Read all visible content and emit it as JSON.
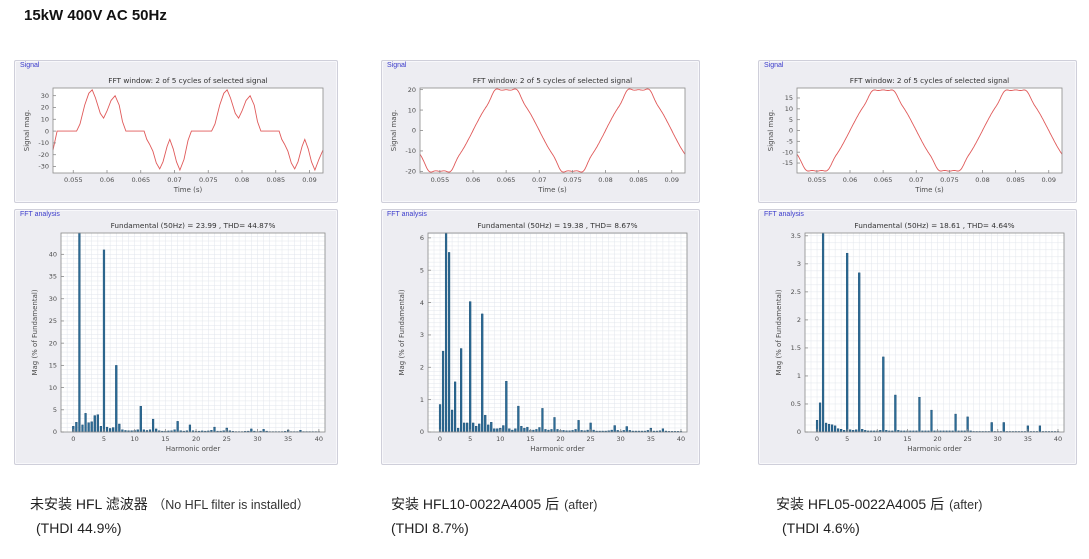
{
  "page_title": "15kW 400V AC 50Hz",
  "colors": {
    "panel_bg": "#ededf2",
    "panel_border": "#cfcfda",
    "plot_bg": "#ffffff",
    "grid": "#dfe3ea",
    "axis": "#8a8a8a",
    "tick_text": "#4d4d4d",
    "title_text": "#333333",
    "signal_line": "#e05a5a",
    "bar_fill": "#2c6b95",
    "bar_edge": "#16486e",
    "group_label": "#3c3ccc"
  },
  "panels": [
    {
      "signal_label": "Signal",
      "fft_label": "FFT analysis",
      "caption_main": "未安装 HFL 滤波器",
      "caption_note": "（No HFL filter is installed）",
      "caption_thdi": "(THDI 44.9%)"
    },
    {
      "signal_label": "Signal",
      "fft_label": "FFT analysis",
      "caption_main": "安装 HFL10-0022A4005 后",
      "caption_note": "(after)",
      "caption_thdi": "(THDI 8.7%)"
    },
    {
      "signal_label": "Signal",
      "fft_label": "FFT analysis",
      "caption_main": "安装 HFL05-0022A4005 后",
      "caption_note": "(after)",
      "caption_thdi": "(THDI 4.6%)"
    }
  ],
  "chart_data": [
    {
      "type": "line",
      "title": "FFT window: 2 of 5 cycles of selected signal",
      "xlabel": "Time (s)",
      "ylabel": "Signal mag.",
      "xlim": [
        0.052,
        0.092
      ],
      "ylim": [
        -35.5,
        36.5
      ],
      "xticks": [
        0.055,
        0.06,
        0.065,
        0.07,
        0.075,
        0.08,
        0.085,
        0.09
      ],
      "yticks": [
        -30,
        -20,
        -10,
        0,
        10,
        20,
        30
      ],
      "grid": null,
      "points": [
        [
          0.052,
          -16
        ],
        [
          0.0526,
          0
        ],
        [
          0.0555,
          0
        ],
        [
          0.056,
          6
        ],
        [
          0.0567,
          22
        ],
        [
          0.0573,
          32
        ],
        [
          0.0578,
          35
        ],
        [
          0.0583,
          28
        ],
        [
          0.059,
          15
        ],
        [
          0.0595,
          11
        ],
        [
          0.06,
          17
        ],
        [
          0.0606,
          26
        ],
        [
          0.0612,
          30
        ],
        [
          0.0618,
          22
        ],
        [
          0.0623,
          8
        ],
        [
          0.0628,
          0
        ],
        [
          0.0655,
          0
        ],
        [
          0.0659,
          -7
        ],
        [
          0.0663,
          -11
        ],
        [
          0.0668,
          -17
        ],
        [
          0.0673,
          -27
        ],
        [
          0.0678,
          -32
        ],
        [
          0.0683,
          -26
        ],
        [
          0.0689,
          -13
        ],
        [
          0.0693,
          -7
        ],
        [
          0.0698,
          -15
        ],
        [
          0.0703,
          -26
        ],
        [
          0.0708,
          -33
        ],
        [
          0.0714,
          -24
        ],
        [
          0.072,
          -8
        ],
        [
          0.0725,
          0
        ],
        [
          0.0755,
          0
        ],
        [
          0.076,
          6
        ],
        [
          0.0767,
          22
        ],
        [
          0.0773,
          32
        ],
        [
          0.0778,
          35
        ],
        [
          0.0783,
          28
        ],
        [
          0.079,
          15
        ],
        [
          0.0795,
          11
        ],
        [
          0.08,
          17
        ],
        [
          0.0806,
          26
        ],
        [
          0.0812,
          30
        ],
        [
          0.0818,
          22
        ],
        [
          0.0823,
          8
        ],
        [
          0.0828,
          0
        ],
        [
          0.0855,
          0
        ],
        [
          0.0859,
          -7
        ],
        [
          0.0863,
          -11
        ],
        [
          0.0868,
          -17
        ],
        [
          0.0873,
          -27
        ],
        [
          0.0878,
          -32
        ],
        [
          0.0883,
          -26
        ],
        [
          0.0889,
          -13
        ],
        [
          0.0893,
          -7
        ],
        [
          0.0898,
          -15
        ],
        [
          0.0903,
          -26
        ],
        [
          0.0908,
          -33
        ],
        [
          0.0914,
          -24
        ],
        [
          0.092,
          -16
        ]
      ]
    },
    {
      "type": "bar",
      "title": "Fundamental (50Hz) = 23.99 , THD= 44.87%",
      "xlabel": "Harmonic order",
      "ylabel": "Mag (% of Fundamental)",
      "xlim": [
        -2,
        41
      ],
      "ylim": [
        0,
        44.8
      ],
      "xticks": [
        0,
        5,
        10,
        15,
        20,
        25,
        30,
        35,
        40
      ],
      "yticks": [
        0,
        5,
        10,
        15,
        20,
        25,
        30,
        35,
        40
      ],
      "grid": [
        1,
        1
      ],
      "x_start": 0,
      "x_step": 0.5,
      "values": [
        1.3,
        2.2,
        100,
        1.6,
        4.2,
        2.1,
        2.3,
        3.7,
        3.9,
        1.3,
        41,
        1.1,
        0.8,
        1.0,
        15,
        1.8,
        0.5,
        0.35,
        0.3,
        0.3,
        0.35,
        0.5,
        5.8,
        0.5,
        0.35,
        0.5,
        2.9,
        0.7,
        0.3,
        0.2,
        0.2,
        0.25,
        0.3,
        0.5,
        2.4,
        0.3,
        0.2,
        0.3,
        1.6,
        0.3,
        0.2,
        0.2,
        0.25,
        0.2,
        0.25,
        0.4,
        1.1,
        0.2,
        0.2,
        0.3,
        0.9,
        0.3,
        0.15,
        0.1,
        0.1,
        0.1,
        0.15,
        0.2,
        0.7,
        0.2,
        0.1,
        0.2,
        0.6,
        0.2,
        0.1,
        0.1,
        0.1,
        0.1,
        0.1,
        0.15,
        0.45,
        0.1,
        0.1,
        0.1,
        0.4,
        0.1,
        0.1,
        0.1,
        0.1,
        0.1,
        0.1
      ]
    },
    {
      "type": "line",
      "title": "FFT window: 2 of 5 cycles of selected signal",
      "xlabel": "Time (s)",
      "ylabel": "Signal mag.",
      "xlim": [
        0.052,
        0.092
      ],
      "ylim": [
        -20.8,
        20.8
      ],
      "xticks": [
        0.055,
        0.06,
        0.065,
        0.07,
        0.075,
        0.08,
        0.085,
        0.09
      ],
      "yticks": [
        -20,
        -10,
        0,
        10,
        20
      ],
      "grid": null,
      "synth": {
        "f0": 50,
        "t0": 0.06,
        "components": [
          [
            1,
            21,
            0
          ],
          [
            5,
            0.78,
            180
          ],
          [
            7,
            0.71,
            0
          ],
          [
            11,
            0.31,
            180
          ],
          [
            13,
            0.16,
            0
          ]
        ]
      }
    },
    {
      "type": "bar",
      "title": "Fundamental (50Hz) = 19.38 , THD= 8.67%",
      "xlabel": "Harmonic order",
      "ylabel": "Mag (% of Fundamental)",
      "xlim": [
        -2,
        41
      ],
      "ylim": [
        0,
        6.15
      ],
      "xticks": [
        0,
        5,
        10,
        15,
        20,
        25,
        30,
        35,
        40
      ],
      "yticks": [
        0,
        1,
        2,
        3,
        4,
        5,
        6
      ],
      "grid": [
        1,
        0.125
      ],
      "x_start": 0,
      "x_step": 0.5,
      "values": [
        0.85,
        2.5,
        100,
        5.55,
        0.68,
        1.55,
        0.12,
        2.58,
        0.28,
        0.28,
        4.03,
        0.28,
        0.18,
        0.25,
        3.65,
        0.52,
        0.22,
        0.3,
        0.1,
        0.1,
        0.12,
        0.2,
        1.57,
        0.1,
        0.06,
        0.1,
        0.8,
        0.18,
        0.12,
        0.15,
        0.06,
        0.06,
        0.08,
        0.14,
        0.73,
        0.08,
        0.06,
        0.08,
        0.45,
        0.08,
        0.05,
        0.05,
        0.04,
        0.04,
        0.05,
        0.08,
        0.36,
        0.05,
        0.04,
        0.06,
        0.28,
        0.06,
        0.03,
        0.03,
        0.03,
        0.03,
        0.04,
        0.06,
        0.2,
        0.05,
        0.03,
        0.05,
        0.17,
        0.05,
        0.03,
        0.03,
        0.03,
        0.03,
        0.03,
        0.05,
        0.12,
        0.03,
        0.03,
        0.04,
        0.1,
        0.03,
        0.02,
        0.02,
        0.02,
        0.02,
        0.02
      ]
    },
    {
      "type": "line",
      "title": "FFT window: 2 of 5 cycles of selected signal",
      "xlabel": "Time (s)",
      "ylabel": "Signal mag.",
      "xlim": [
        0.052,
        0.092
      ],
      "ylim": [
        -19.6,
        19.6
      ],
      "xticks": [
        0.055,
        0.06,
        0.065,
        0.07,
        0.075,
        0.08,
        0.085,
        0.09
      ],
      "yticks": [
        -15,
        -10,
        -5,
        0,
        5,
        10,
        15
      ],
      "grid": null,
      "synth": {
        "f0": 50,
        "t0": 0.06,
        "components": [
          [
            1,
            19.5,
            0
          ],
          [
            5,
            0.6,
            180
          ],
          [
            7,
            0.53,
            0
          ],
          [
            11,
            0.25,
            180
          ],
          [
            13,
            0.12,
            0
          ]
        ]
      }
    },
    {
      "type": "bar",
      "title": "Fundamental (50Hz) = 18.61 , THD= 4.64%",
      "xlabel": "Harmonic order",
      "ylabel": "Mag (% of Fundamental)",
      "xlim": [
        -2,
        41
      ],
      "ylim": [
        0,
        3.55
      ],
      "xticks": [
        0,
        5,
        10,
        15,
        20,
        25,
        30,
        35,
        40
      ],
      "yticks": [
        0,
        0.5,
        1,
        1.5,
        2,
        2.5,
        3,
        3.5
      ],
      "grid": [
        1,
        0.125
      ],
      "x_start": 0,
      "x_step": 0.5,
      "values": [
        0.21,
        0.52,
        100,
        0.16,
        0.14,
        0.13,
        0.11,
        0.06,
        0.05,
        0.03,
        3.19,
        0.04,
        0.03,
        0.04,
        2.84,
        0.05,
        0.03,
        0.02,
        0.02,
        0.02,
        0.02,
        0.03,
        1.34,
        0.03,
        0.02,
        0.02,
        0.66,
        0.03,
        0.02,
        0.02,
        0.02,
        0.02,
        0.02,
        0.02,
        0.62,
        0.02,
        0.02,
        0.02,
        0.39,
        0.02,
        0.02,
        0.02,
        0.02,
        0.02,
        0.02,
        0.02,
        0.32,
        0.02,
        0.02,
        0.02,
        0.27,
        0.02,
        0.01,
        0.01,
        0.01,
        0.01,
        0.01,
        0.01,
        0.17,
        0.01,
        0.01,
        0.01,
        0.17,
        0.01,
        0.01,
        0.01,
        0.01,
        0.01,
        0.01,
        0.01,
        0.11,
        0.01,
        0.01,
        0.01,
        0.11,
        0.01,
        0.01,
        0.01,
        0.01,
        0.01,
        0.01
      ]
    }
  ]
}
